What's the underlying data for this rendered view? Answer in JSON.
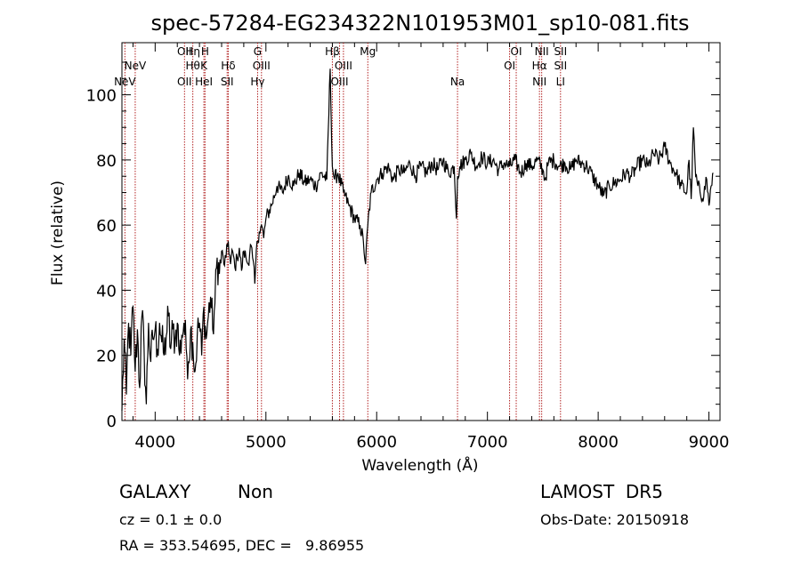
{
  "chart_data": {
    "type": "line",
    "title": "spec-57284-EG234322N101953M01_sp10-081.fits",
    "xlabel": "Wavelength (Å)",
    "ylabel": "Flux (relative)",
    "xlim": [
      3700,
      9100
    ],
    "ylim": [
      0,
      116
    ],
    "x_ticks": [
      4000,
      5000,
      6000,
      7000,
      8000,
      9000
    ],
    "y_ticks": [
      0,
      20,
      40,
      60,
      80,
      100
    ],
    "grid": false,
    "line_color": "#000000",
    "marker_color": "#b22222",
    "series": [
      {
        "x": [
          3700,
          3720,
          3740,
          3760,
          3780,
          3800,
          3820,
          3840,
          3860,
          3880,
          3900,
          3920,
          3940,
          3960,
          3980,
          4000,
          4020,
          4040,
          4060,
          4080,
          4100,
          4120,
          4140,
          4160,
          4180,
          4200,
          4220,
          4240,
          4260,
          4280,
          4300,
          4320,
          4340,
          4360,
          4380,
          4400,
          4420,
          4440,
          4460,
          4480,
          4500,
          4520,
          4540,
          4560,
          4580,
          4600,
          4620,
          4640,
          4660,
          4680,
          4700,
          4720,
          4740,
          4760,
          4780,
          4800,
          4820,
          4840,
          4860,
          4880,
          4900,
          4920,
          4940,
          4960,
          4980,
          5000,
          5050,
          5100,
          5150,
          5200,
          5250,
          5300,
          5350,
          5400,
          5450,
          5500,
          5550,
          5580,
          5600,
          5620,
          5650,
          5700,
          5750,
          5800,
          5850,
          5880,
          5900,
          5920,
          5950,
          6000,
          6050,
          6100,
          6150,
          6200,
          6250,
          6300,
          6350,
          6400,
          6450,
          6500,
          6550,
          6600,
          6650,
          6700,
          6720,
          6730,
          6750,
          6800,
          6850,
          6900,
          6950,
          7000,
          7050,
          7100,
          7150,
          7200,
          7250,
          7300,
          7350,
          7400,
          7450,
          7500,
          7520,
          7550,
          7600,
          7650,
          7700,
          7750,
          7800,
          7850,
          7900,
          7950,
          8000,
          8050,
          8100,
          8150,
          8200,
          8250,
          8300,
          8350,
          8400,
          8450,
          8500,
          8550,
          8600,
          8650,
          8700,
          8750,
          8800,
          8820,
          8840,
          8860,
          8880,
          8900,
          8920,
          8940,
          8960,
          8980,
          9000,
          9020,
          9040
        ],
        "y": [
          3,
          25,
          8,
          30,
          20,
          35,
          15,
          28,
          10,
          32,
          22,
          5,
          30,
          18,
          25,
          28,
          22,
          30,
          24,
          20,
          26,
          32,
          22,
          28,
          25,
          30,
          20,
          26,
          30,
          22,
          18,
          28,
          24,
          15,
          26,
          30,
          20,
          35,
          25,
          32,
          38,
          28,
          36,
          50,
          45,
          52,
          48,
          50,
          55,
          48,
          52,
          47,
          50,
          53,
          46,
          52,
          50,
          48,
          54,
          50,
          42,
          55,
          58,
          60,
          56,
          62,
          66,
          72,
          70,
          75,
          72,
          76,
          73,
          74,
          72,
          76,
          74,
          108,
          78,
          74,
          76,
          70,
          66,
          62,
          60,
          55,
          48,
          60,
          70,
          74,
          76,
          78,
          74,
          77,
          76,
          79,
          75,
          78,
          76,
          79,
          77,
          80,
          76,
          78,
          62,
          75,
          78,
          80,
          82,
          78,
          81,
          79,
          80,
          77,
          79,
          78,
          80,
          76,
          79,
          78,
          80,
          77,
          74,
          79,
          80,
          78,
          79,
          77,
          80,
          79,
          78,
          75,
          72,
          69,
          72,
          73,
          74,
          76,
          75,
          78,
          80,
          78,
          82,
          80,
          84,
          79,
          76,
          72,
          70,
          80,
          68,
          90,
          75,
          72,
          70,
          68,
          72,
          74,
          66,
          72,
          76
        ]
      }
    ],
    "lines": [
      {
        "x": 3727,
        "label": "NeV",
        "row": 3
      },
      {
        "x": 3820,
        "label": "NeV",
        "row": 2
      },
      {
        "x": 4265,
        "label": "OII",
        "row": 1
      },
      {
        "x": 4265,
        "label": "OII",
        "row": 3
      },
      {
        "x": 4340,
        "label": "Hη",
        "row": 1
      },
      {
        "x": 4340,
        "label": "Hθ",
        "row": 2
      },
      {
        "x": 4450,
        "label": "H",
        "row": 1
      },
      {
        "x": 4440,
        "label": "K",
        "row": 2
      },
      {
        "x": 4440,
        "label": "HeI",
        "row": 3
      },
      {
        "x": 4660,
        "label": "Hδ",
        "row": 2
      },
      {
        "x": 4650,
        "label": "SII",
        "row": 3
      },
      {
        "x": 4925,
        "label": "G",
        "row": 1
      },
      {
        "x": 4960,
        "label": "OIII",
        "row": 2
      },
      {
        "x": 4925,
        "label": "Hγ",
        "row": 3
      },
      {
        "x": 5600,
        "label": "Hβ",
        "row": 1
      },
      {
        "x": 5700,
        "label": "OIII",
        "row": 2
      },
      {
        "x": 5665,
        "label": "OIII",
        "row": 3
      },
      {
        "x": 5920,
        "label": "Mg",
        "row": 1
      },
      {
        "x": 6730,
        "label": "Na",
        "row": 3
      },
      {
        "x": 7260,
        "label": "OI",
        "row": 1
      },
      {
        "x": 7200,
        "label": "OI",
        "row": 2
      },
      {
        "x": 7490,
        "label": "NII",
        "row": 1
      },
      {
        "x": 7470,
        "label": "Hα",
        "row": 2
      },
      {
        "x": 7470,
        "label": "NII",
        "row": 3
      },
      {
        "x": 7660,
        "label": "SII",
        "row": 1
      },
      {
        "x": 7660,
        "label": "SII",
        "row": 2
      },
      {
        "x": 7660,
        "label": "LI",
        "row": 3
      }
    ]
  },
  "footer": {
    "class_label": "GALAXY",
    "subclass": "Non",
    "survey": "LAMOST  DR5",
    "cz": "cz = 0.1 ± 0.0",
    "obs_date": "Obs-Date: 20150918",
    "radec": "RA = 353.54695, DEC =   9.86955"
  }
}
